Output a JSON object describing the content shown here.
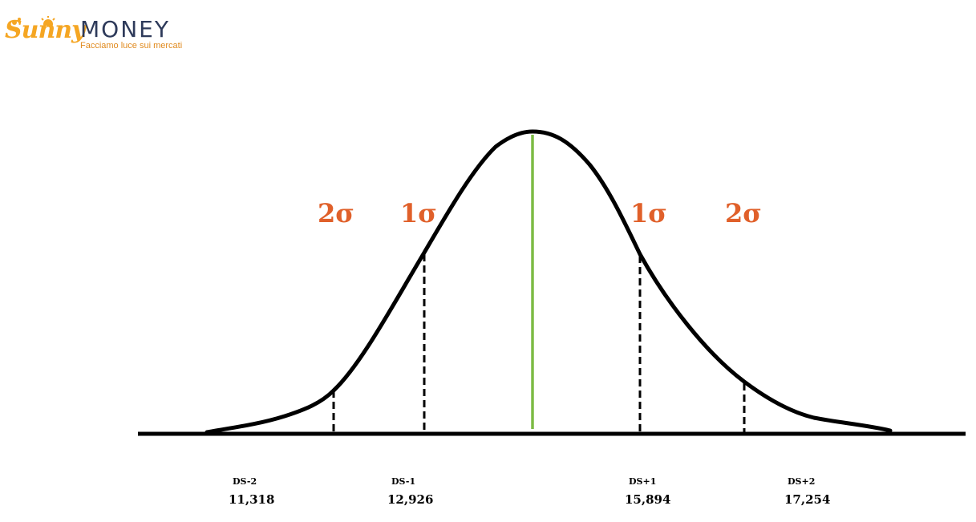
{
  "brand": {
    "name_part1": "Sunny",
    "name_part2": "MONEY",
    "tagline": "Facciamo luce sui mercati",
    "colors": {
      "orange": "#f5a623",
      "navy": "#2e3a5a"
    }
  },
  "sigma_labels": {
    "left_2": "2σ",
    "left_1": "1σ",
    "right_1": "1σ",
    "right_2": "2σ",
    "color": "#e0602a"
  },
  "markers": [
    {
      "label": "DS-2",
      "value": "11,318"
    },
    {
      "label": "DS-1",
      "value": "12,926"
    },
    {
      "label": "DS+1",
      "value": "15,894"
    },
    {
      "label": "DS+2",
      "value": "17,254"
    }
  ],
  "colors": {
    "curve": "#000000",
    "mean_line": "#7dbb45"
  }
}
